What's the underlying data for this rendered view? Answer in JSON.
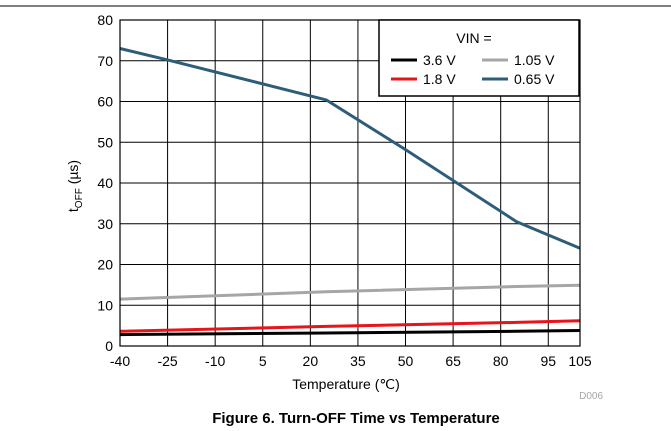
{
  "chart_data": {
    "type": "line",
    "caption": "Figure 6. Turn-OFF Time vs Temperature",
    "figure_code": "D006",
    "xlabel": "Temperature (℃)",
    "ylabel": "tOFF (µs)",
    "ylabel_main": "t",
    "ylabel_sub": "OFF",
    "ylabel_unit": " (µs)",
    "x_ticks": [
      -40,
      -25,
      -10,
      5,
      20,
      35,
      50,
      65,
      80,
      95,
      105
    ],
    "y_ticks": [
      0,
      10,
      20,
      30,
      40,
      50,
      60,
      70,
      80
    ],
    "xlim": [
      -40,
      105
    ],
    "ylim": [
      0,
      80
    ],
    "grid": true,
    "legend_title": "VIN =",
    "legend_position": "top-right",
    "series": [
      {
        "name": "3.6 V",
        "color": "#000000",
        "points": [
          [
            -40,
            2.8
          ],
          [
            25,
            3.2
          ],
          [
            85,
            3.6
          ],
          [
            105,
            3.8
          ]
        ]
      },
      {
        "name": "1.8 V",
        "color": "#e8141c",
        "points": [
          [
            -40,
            3.6
          ],
          [
            25,
            4.8
          ],
          [
            85,
            5.8
          ],
          [
            105,
            6.2
          ]
        ]
      },
      {
        "name": "1.05 V",
        "color": "#a6a6a6",
        "points": [
          [
            -40,
            11.5
          ],
          [
            25,
            13.3
          ],
          [
            85,
            14.6
          ],
          [
            105,
            14.9
          ]
        ]
      },
      {
        "name": "0.65 V",
        "color": "#2e5d7a",
        "points": [
          [
            -40,
            73
          ],
          [
            -25,
            70.2
          ],
          [
            25,
            60.4
          ],
          [
            50,
            48.2
          ],
          [
            85,
            30.5
          ],
          [
            105,
            24
          ]
        ]
      }
    ]
  }
}
